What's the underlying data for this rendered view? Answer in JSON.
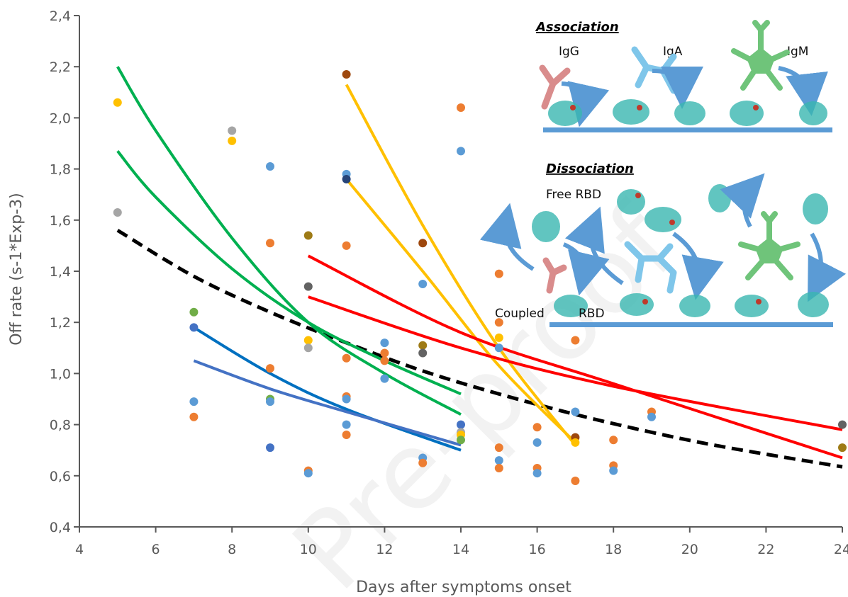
{
  "chart_data": {
    "type": "scatter",
    "xlabel": "Days after symptoms onset",
    "ylabel": "Off rate (s-1*Exp-3)",
    "xlim": [
      4,
      24
    ],
    "ylim": [
      0.4,
      2.4
    ],
    "x_ticks": [
      4,
      6,
      8,
      10,
      12,
      14,
      16,
      18,
      20,
      22,
      24
    ],
    "y_ticks": [
      "0,4",
      "0,6",
      "0,8",
      "1,0",
      "1,2",
      "1,4",
      "1,6",
      "1,8",
      "2,0",
      "2,2",
      "2,4"
    ],
    "y_tick_values": [
      0.4,
      0.6,
      0.8,
      1.0,
      1.2,
      1.4,
      1.6,
      1.8,
      2.0,
      2.2,
      2.4
    ],
    "grid": false,
    "points": [
      {
        "x": 5,
        "y": 2.06,
        "color": "#ffc000"
      },
      {
        "x": 5,
        "y": 1.63,
        "color": "#a5a5a5"
      },
      {
        "x": 7,
        "y": 1.24,
        "color": "#70ad47"
      },
      {
        "x": 7,
        "y": 1.18,
        "color": "#4472c4"
      },
      {
        "x": 7,
        "y": 0.89,
        "color": "#5b9bd5"
      },
      {
        "x": 7,
        "y": 0.83,
        "color": "#ed7d31"
      },
      {
        "x": 8,
        "y": 1.95,
        "color": "#a5a5a5"
      },
      {
        "x": 8,
        "y": 1.91,
        "color": "#ffc000"
      },
      {
        "x": 9,
        "y": 1.81,
        "color": "#5b9bd5"
      },
      {
        "x": 9,
        "y": 1.51,
        "color": "#ed7d31"
      },
      {
        "x": 9,
        "y": 1.02,
        "color": "#ed7d31"
      },
      {
        "x": 9,
        "y": 0.9,
        "color": "#70ad47"
      },
      {
        "x": 9,
        "y": 0.89,
        "color": "#5b9bd5"
      },
      {
        "x": 9,
        "y": 0.71,
        "color": "#4472c4"
      },
      {
        "x": 10,
        "y": 1.54,
        "color": "#9e7b16"
      },
      {
        "x": 10,
        "y": 1.34,
        "color": "#636363"
      },
      {
        "x": 10,
        "y": 1.13,
        "color": "#ffc000"
      },
      {
        "x": 10,
        "y": 1.1,
        "color": "#a5a5a5"
      },
      {
        "x": 10,
        "y": 0.62,
        "color": "#ed7d31"
      },
      {
        "x": 10,
        "y": 0.61,
        "color": "#5b9bd5"
      },
      {
        "x": 11,
        "y": 2.17,
        "color": "#9e480e"
      },
      {
        "x": 11,
        "y": 1.78,
        "color": "#5b9bd5"
      },
      {
        "x": 11,
        "y": 1.76,
        "color": "#264478"
      },
      {
        "x": 11,
        "y": 1.5,
        "color": "#ed7d31"
      },
      {
        "x": 11,
        "y": 1.06,
        "color": "#ed7d31"
      },
      {
        "x": 11,
        "y": 0.91,
        "color": "#ed7d31"
      },
      {
        "x": 11,
        "y": 0.9,
        "color": "#5b9bd5"
      },
      {
        "x": 11,
        "y": 0.8,
        "color": "#5b9bd5"
      },
      {
        "x": 11,
        "y": 0.76,
        "color": "#ed7d31"
      },
      {
        "x": 12,
        "y": 1.12,
        "color": "#5b9bd5"
      },
      {
        "x": 12,
        "y": 1.08,
        "color": "#ed7d31"
      },
      {
        "x": 12,
        "y": 1.05,
        "color": "#ed7d31"
      },
      {
        "x": 12,
        "y": 0.98,
        "color": "#5b9bd5"
      },
      {
        "x": 13,
        "y": 1.51,
        "color": "#9e480e"
      },
      {
        "x": 13,
        "y": 1.35,
        "color": "#5b9bd5"
      },
      {
        "x": 13,
        "y": 1.11,
        "color": "#9e7b16"
      },
      {
        "x": 13,
        "y": 1.08,
        "color": "#636363"
      },
      {
        "x": 13,
        "y": 0.67,
        "color": "#5b9bd5"
      },
      {
        "x": 13,
        "y": 0.65,
        "color": "#ed7d31"
      },
      {
        "x": 14,
        "y": 2.04,
        "color": "#ed7d31"
      },
      {
        "x": 14,
        "y": 1.87,
        "color": "#5b9bd5"
      },
      {
        "x": 14,
        "y": 0.8,
        "color": "#4472c4"
      },
      {
        "x": 14,
        "y": 0.77,
        "color": "#a5a5a5"
      },
      {
        "x": 14,
        "y": 0.76,
        "color": "#ffc000"
      },
      {
        "x": 14,
        "y": 0.74,
        "color": "#70ad47"
      },
      {
        "x": 15,
        "y": 1.39,
        "color": "#ed7d31"
      },
      {
        "x": 15,
        "y": 1.2,
        "color": "#ed7d31"
      },
      {
        "x": 15,
        "y": 1.14,
        "color": "#ffc000"
      },
      {
        "x": 15,
        "y": 1.1,
        "color": "#5b9bd5"
      },
      {
        "x": 15,
        "y": 0.71,
        "color": "#ed7d31"
      },
      {
        "x": 15,
        "y": 0.66,
        "color": "#5b9bd5"
      },
      {
        "x": 15,
        "y": 0.63,
        "color": "#ed7d31"
      },
      {
        "x": 16,
        "y": 0.79,
        "color": "#ed7d31"
      },
      {
        "x": 16,
        "y": 0.73,
        "color": "#5b9bd5"
      },
      {
        "x": 16,
        "y": 0.63,
        "color": "#ed7d31"
      },
      {
        "x": 16,
        "y": 0.61,
        "color": "#5b9bd5"
      },
      {
        "x": 17,
        "y": 1.13,
        "color": "#ed7d31"
      },
      {
        "x": 17,
        "y": 0.85,
        "color": "#5b9bd5"
      },
      {
        "x": 17,
        "y": 0.75,
        "color": "#9e480e"
      },
      {
        "x": 17,
        "y": 0.73,
        "color": "#ffc000"
      },
      {
        "x": 17,
        "y": 0.58,
        "color": "#ed7d31"
      },
      {
        "x": 18,
        "y": 0.74,
        "color": "#ed7d31"
      },
      {
        "x": 18,
        "y": 0.64,
        "color": "#ed7d31"
      },
      {
        "x": 18,
        "y": 0.62,
        "color": "#5b9bd5"
      },
      {
        "x": 19,
        "y": 0.85,
        "color": "#ed7d31"
      },
      {
        "x": 19,
        "y": 0.83,
        "color": "#5b9bd5"
      },
      {
        "x": 24,
        "y": 0.8,
        "color": "#636363"
      },
      {
        "x": 24,
        "y": 0.71,
        "color": "#9e7b16"
      }
    ],
    "series": [
      {
        "kind": "trend",
        "color": "#000000",
        "dashed": true,
        "x": [
          5,
          7,
          9,
          11,
          13,
          15,
          17,
          19,
          21,
          24
        ],
        "y": [
          1.56,
          1.38,
          1.24,
          1.12,
          1.01,
          0.92,
          0.84,
          0.77,
          0.71,
          0.635
        ]
      },
      {
        "kind": "trend",
        "color": "#00b050",
        "x": [
          5,
          6,
          8,
          10,
          12,
          14
        ],
        "y": [
          2.2,
          1.95,
          1.53,
          1.2,
          1.0,
          0.84
        ]
      },
      {
        "kind": "trend",
        "color": "#00b050",
        "x": [
          5,
          6,
          8,
          10,
          12,
          14
        ],
        "y": [
          1.87,
          1.69,
          1.41,
          1.2,
          1.05,
          0.92
        ]
      },
      {
        "kind": "trend",
        "color": "#ffc000",
        "x": [
          11,
          13,
          15,
          17
        ],
        "y": [
          2.13,
          1.58,
          1.1,
          0.72
        ]
      },
      {
        "kind": "trend",
        "color": "#ffc000",
        "x": [
          11,
          13,
          15,
          17
        ],
        "y": [
          1.76,
          1.4,
          1.03,
          0.73
        ]
      },
      {
        "kind": "trend",
        "color": "#ff0000",
        "x": [
          10,
          14,
          18,
          24
        ],
        "y": [
          1.46,
          1.16,
          0.96,
          0.67
        ]
      },
      {
        "kind": "trend",
        "color": "#ff0000",
        "x": [
          10,
          14,
          18,
          24
        ],
        "y": [
          1.3,
          1.1,
          0.95,
          0.78
        ]
      },
      {
        "kind": "trend",
        "color": "#0070c0",
        "x": [
          7,
          9,
          11,
          14
        ],
        "y": [
          1.18,
          1.0,
          0.86,
          0.7
        ]
      },
      {
        "kind": "trend",
        "color": "#4472c4",
        "x": [
          7,
          9,
          11,
          14
        ],
        "y": [
          1.05,
          0.94,
          0.85,
          0.72
        ]
      }
    ]
  },
  "inset": {
    "association_title": "Association",
    "dissociation_title": "Dissociation",
    "igg": "IgG",
    "iga": "IgA",
    "igm": "IgM",
    "free_rbd": "Free RBD",
    "coupled": "Coupled",
    "rbd": "RBD",
    "surface_color": "#5b9bd5",
    "arrow_color": "#5b9bd5",
    "igg_color": "#d98c8c",
    "iga_color": "#7fc6ea",
    "igm_color": "#6fc47a"
  },
  "watermark": "Pre-proof"
}
